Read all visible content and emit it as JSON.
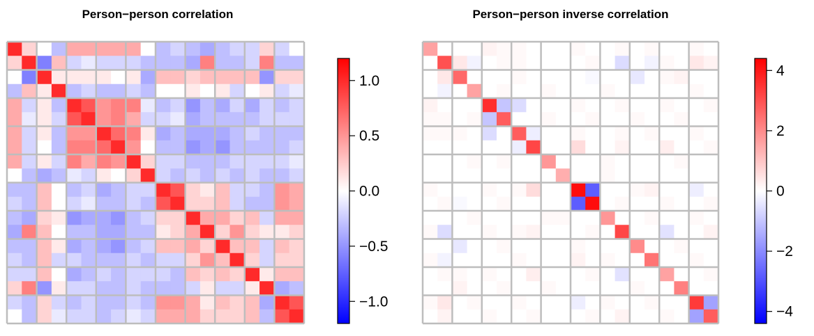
{
  "chart_data": [
    {
      "type": "heatmap",
      "title": "Person−person correlation",
      "rows": 20,
      "cols": 20,
      "block_size": 2,
      "colorbar": {
        "min": -1.2,
        "max": 1.2,
        "ticks": [
          1.0,
          0.5,
          0.0,
          -0.5,
          -1.0
        ],
        "tick_labels": [
          "1.0",
          "0.5",
          "0.0",
          "−0.5",
          "−1.0"
        ],
        "colors": [
          "#0000ff",
          "#ffffff",
          "#ff0000"
        ]
      },
      "values": [
        [
          1.0,
          0.2,
          0.0,
          -0.3,
          0.4,
          0.4,
          0.4,
          0.4,
          0.4,
          0.0,
          -0.3,
          -0.2,
          -0.3,
          -0.4,
          -0.3,
          -0.2,
          -0.2,
          0.2,
          -0.2,
          0.0
        ],
        [
          0.2,
          1.0,
          -0.6,
          0.3,
          -0.2,
          -0.1,
          -0.2,
          -0.2,
          -0.2,
          -0.3,
          -0.3,
          -0.3,
          -0.4,
          0.6,
          -0.3,
          -0.3,
          -0.2,
          0.6,
          -0.3,
          -0.3
        ],
        [
          0.0,
          -0.6,
          1.0,
          0.1,
          0.1,
          0.1,
          0.1,
          0.0,
          0.1,
          -0.4,
          0.3,
          0.3,
          0.2,
          0.3,
          0.3,
          0.3,
          0.3,
          -0.5,
          0.2,
          0.2
        ],
        [
          -0.3,
          0.3,
          0.1,
          1.0,
          -0.3,
          -0.2,
          -0.3,
          -0.3,
          -0.2,
          -0.3,
          0.0,
          0.0,
          0.1,
          0.0,
          0.1,
          -0.2,
          0.0,
          0.1,
          -0.2,
          -0.1
        ],
        [
          0.4,
          -0.2,
          0.1,
          -0.3,
          1.0,
          0.8,
          0.5,
          0.6,
          0.6,
          -0.1,
          -0.3,
          -0.2,
          -0.5,
          -0.3,
          -0.4,
          -0.2,
          -0.4,
          -0.2,
          -0.3,
          -0.2
        ],
        [
          0.4,
          -0.1,
          0.1,
          -0.2,
          0.8,
          1.0,
          0.5,
          0.6,
          0.4,
          -0.2,
          -0.2,
          -0.1,
          -0.4,
          -0.3,
          -0.3,
          -0.3,
          -0.3,
          -0.2,
          -0.2,
          -0.2
        ],
        [
          0.4,
          -0.2,
          0.1,
          -0.3,
          0.5,
          0.5,
          1.0,
          0.7,
          0.6,
          0.1,
          -0.4,
          -0.3,
          -0.4,
          -0.4,
          -0.4,
          -0.3,
          -0.2,
          -0.3,
          -0.3,
          -0.3
        ],
        [
          0.4,
          -0.2,
          0.0,
          -0.3,
          0.6,
          0.6,
          0.7,
          1.0,
          0.5,
          0.0,
          -0.3,
          -0.3,
          -0.5,
          -0.4,
          -0.5,
          -0.3,
          -0.3,
          -0.3,
          -0.3,
          -0.2
        ],
        [
          0.4,
          -0.2,
          0.1,
          -0.2,
          0.6,
          0.4,
          0.6,
          0.5,
          1.0,
          0.2,
          -0.2,
          -0.2,
          -0.3,
          -0.3,
          -0.3,
          -0.2,
          -0.2,
          -0.2,
          -0.2,
          -0.1
        ],
        [
          0.0,
          -0.3,
          -0.4,
          -0.3,
          -0.1,
          -0.2,
          0.1,
          0.0,
          0.2,
          1.0,
          -0.2,
          -0.3,
          -0.2,
          -0.3,
          -0.2,
          -0.3,
          -0.2,
          -0.3,
          -0.3,
          -0.2
        ],
        [
          -0.3,
          -0.3,
          0.3,
          0.0,
          -0.3,
          -0.2,
          -0.4,
          -0.3,
          -0.2,
          -0.2,
          1.0,
          0.8,
          0.2,
          0.1,
          0.3,
          -0.2,
          -0.2,
          -0.3,
          0.5,
          0.4
        ],
        [
          -0.2,
          -0.3,
          0.3,
          0.0,
          -0.2,
          -0.1,
          -0.3,
          -0.3,
          -0.2,
          -0.3,
          0.8,
          1.0,
          0.2,
          0.2,
          0.3,
          -0.2,
          -0.3,
          -0.3,
          0.5,
          0.4
        ],
        [
          -0.3,
          -0.4,
          0.2,
          0.1,
          -0.5,
          -0.4,
          -0.4,
          -0.5,
          -0.3,
          -0.2,
          0.2,
          0.2,
          1.0,
          0.4,
          0.4,
          0.2,
          0.3,
          -0.2,
          0.4,
          0.4
        ],
        [
          -0.4,
          0.6,
          0.3,
          0.0,
          -0.3,
          -0.3,
          -0.4,
          -0.4,
          -0.3,
          -0.3,
          0.1,
          0.2,
          0.4,
          1.0,
          0.2,
          0.5,
          0.2,
          0.1,
          0.1,
          0.2
        ],
        [
          -0.3,
          -0.3,
          0.3,
          0.1,
          -0.4,
          -0.3,
          -0.4,
          -0.5,
          -0.3,
          -0.2,
          0.3,
          0.3,
          0.4,
          0.2,
          1.0,
          0.3,
          0.3,
          -0.2,
          0.3,
          0.2
        ],
        [
          -0.2,
          -0.3,
          0.3,
          -0.2,
          -0.2,
          -0.3,
          -0.3,
          -0.3,
          -0.2,
          -0.3,
          -0.2,
          -0.2,
          0.2,
          0.5,
          0.3,
          1.0,
          0.2,
          -0.2,
          0.2,
          0.2
        ],
        [
          -0.2,
          -0.2,
          0.3,
          0.0,
          -0.4,
          -0.3,
          -0.2,
          -0.3,
          -0.2,
          -0.2,
          -0.2,
          -0.3,
          0.3,
          0.2,
          0.3,
          0.2,
          1.0,
          0.1,
          0.3,
          0.3
        ],
        [
          0.2,
          0.6,
          -0.5,
          0.1,
          -0.2,
          -0.2,
          -0.3,
          -0.3,
          -0.2,
          -0.3,
          -0.3,
          -0.3,
          -0.2,
          0.1,
          -0.2,
          -0.2,
          0.1,
          1.0,
          -0.4,
          -0.3
        ],
        [
          -0.2,
          -0.3,
          0.2,
          -0.2,
          -0.3,
          -0.2,
          -0.3,
          -0.3,
          -0.2,
          -0.3,
          0.5,
          0.5,
          0.4,
          0.1,
          0.3,
          0.2,
          0.3,
          -0.4,
          1.0,
          0.8
        ],
        [
          0.0,
          -0.3,
          0.2,
          -0.1,
          -0.2,
          -0.2,
          -0.3,
          -0.2,
          -0.1,
          -0.2,
          0.4,
          0.4,
          0.4,
          0.2,
          0.2,
          0.2,
          0.3,
          -0.3,
          0.8,
          1.0
        ]
      ]
    },
    {
      "type": "heatmap",
      "title": "Person−person inverse correlation",
      "rows": 20,
      "cols": 20,
      "block_size": 2,
      "colorbar": {
        "min": -4.4,
        "max": 4.4,
        "ticks": [
          4,
          2,
          0,
          -2,
          -4
        ],
        "tick_labels": [
          "4",
          "2",
          "0",
          "−2",
          "−4"
        ],
        "colors": [
          "#0000ff",
          "#ffffff",
          "#ff0000"
        ]
      },
      "values": [
        [
          1.6,
          0.0,
          0.0,
          0.0,
          0.2,
          0.1,
          0.1,
          0.0,
          0.0,
          0.0,
          0.1,
          0.0,
          0.0,
          0.1,
          0.0,
          0.1,
          0.0,
          0.0,
          0.1,
          0.0
        ],
        [
          0.0,
          3.0,
          0.4,
          -0.2,
          0.0,
          0.1,
          0.1,
          0.0,
          0.0,
          0.0,
          0.0,
          0.1,
          0.0,
          -0.6,
          0.0,
          -0.2,
          0.1,
          0.0,
          0.4,
          0.2
        ],
        [
          0.0,
          0.4,
          2.6,
          0.0,
          0.0,
          0.0,
          0.1,
          0.0,
          0.0,
          0.0,
          0.0,
          -0.1,
          0.0,
          0.0,
          -0.4,
          0.0,
          0.1,
          0.2,
          0.0,
          0.0
        ],
        [
          0.0,
          -0.2,
          0.0,
          1.6,
          0.0,
          0.1,
          0.0,
          0.0,
          0.1,
          0.0,
          0.0,
          0.0,
          0.1,
          0.0,
          0.0,
          0.0,
          0.0,
          0.0,
          0.1,
          0.0
        ],
        [
          0.2,
          0.0,
          0.0,
          0.0,
          3.6,
          -1.0,
          -0.6,
          0.0,
          0.0,
          0.0,
          0.1,
          0.0,
          0.0,
          0.1,
          0.0,
          0.0,
          0.1,
          0.0,
          0.0,
          0.1
        ],
        [
          0.1,
          0.1,
          0.0,
          0.1,
          -1.0,
          2.8,
          0.0,
          0.0,
          0.1,
          0.0,
          0.0,
          0.1,
          0.0,
          0.0,
          0.1,
          0.0,
          0.0,
          0.1,
          0.0,
          0.0
        ],
        [
          0.1,
          0.1,
          0.1,
          0.0,
          -0.6,
          0.0,
          2.8,
          -0.3,
          0.0,
          0.0,
          0.1,
          0.0,
          0.0,
          0.1,
          0.0,
          0.1,
          0.0,
          0.0,
          0.1,
          0.0
        ],
        [
          0.0,
          0.0,
          0.0,
          0.0,
          0.0,
          0.0,
          -0.3,
          3.2,
          0.0,
          0.0,
          0.6,
          0.0,
          0.0,
          0.2,
          0.0,
          0.0,
          0.3,
          0.0,
          0.0,
          0.1
        ],
        [
          0.0,
          0.0,
          0.0,
          0.1,
          0.0,
          0.1,
          0.0,
          0.0,
          1.8,
          0.0,
          0.0,
          0.0,
          0.1,
          0.0,
          0.0,
          0.0,
          0.0,
          0.1,
          0.0,
          0.0
        ],
        [
          0.0,
          0.0,
          0.0,
          0.0,
          0.0,
          0.0,
          0.0,
          0.0,
          0.0,
          1.4,
          0.0,
          0.0,
          0.1,
          0.0,
          0.0,
          0.0,
          0.0,
          0.0,
          0.0,
          0.0
        ],
        [
          0.1,
          0.0,
          0.0,
          0.0,
          0.1,
          0.0,
          0.1,
          0.6,
          0.0,
          0.0,
          4.2,
          -2.8,
          0.0,
          0.0,
          0.1,
          0.2,
          0.0,
          0.0,
          -0.3,
          0.0
        ],
        [
          0.0,
          0.1,
          -0.1,
          0.0,
          0.0,
          0.1,
          0.0,
          0.0,
          0.0,
          0.0,
          -2.8,
          4.2,
          0.0,
          0.1,
          0.0,
          0.0,
          0.1,
          0.0,
          0.0,
          0.1
        ],
        [
          0.0,
          0.0,
          0.0,
          0.1,
          0.0,
          0.0,
          0.0,
          0.0,
          0.1,
          0.1,
          0.0,
          0.0,
          1.8,
          0.0,
          0.0,
          0.1,
          0.0,
          0.0,
          0.1,
          0.0
        ],
        [
          0.1,
          -0.6,
          0.0,
          0.0,
          0.1,
          0.0,
          0.1,
          0.2,
          0.0,
          0.0,
          0.0,
          0.1,
          0.0,
          3.2,
          0.0,
          0.0,
          -0.5,
          0.0,
          0.0,
          0.2
        ],
        [
          0.0,
          0.0,
          -0.4,
          0.0,
          0.0,
          0.1,
          0.0,
          0.0,
          0.0,
          0.0,
          0.1,
          0.0,
          0.0,
          0.0,
          2.0,
          0.0,
          0.0,
          0.1,
          0.0,
          0.0
        ],
        [
          0.1,
          -0.2,
          0.0,
          0.0,
          0.0,
          0.0,
          0.1,
          0.0,
          0.0,
          0.0,
          0.2,
          0.0,
          0.1,
          0.0,
          0.0,
          2.4,
          0.0,
          0.0,
          0.1,
          0.0
        ],
        [
          0.0,
          0.1,
          0.1,
          0.0,
          0.1,
          0.0,
          0.0,
          0.3,
          0.0,
          0.0,
          0.0,
          0.1,
          0.0,
          -0.5,
          0.0,
          0.0,
          1.6,
          0.0,
          0.0,
          0.1
        ],
        [
          0.0,
          0.0,
          0.2,
          0.0,
          0.0,
          0.1,
          0.0,
          0.0,
          0.1,
          0.0,
          0.0,
          0.0,
          0.0,
          0.0,
          0.1,
          0.0,
          0.0,
          2.2,
          0.0,
          0.0
        ],
        [
          0.1,
          0.4,
          0.0,
          0.1,
          0.0,
          0.0,
          0.1,
          0.0,
          0.0,
          0.0,
          -0.3,
          0.0,
          0.1,
          0.0,
          0.0,
          0.1,
          0.0,
          0.0,
          3.4,
          -1.6
        ],
        [
          0.0,
          0.2,
          0.0,
          0.0,
          0.1,
          0.0,
          0.0,
          0.1,
          0.0,
          0.0,
          0.0,
          0.1,
          0.0,
          0.2,
          0.0,
          0.0,
          0.1,
          0.0,
          -1.6,
          2.8
        ]
      ]
    }
  ]
}
